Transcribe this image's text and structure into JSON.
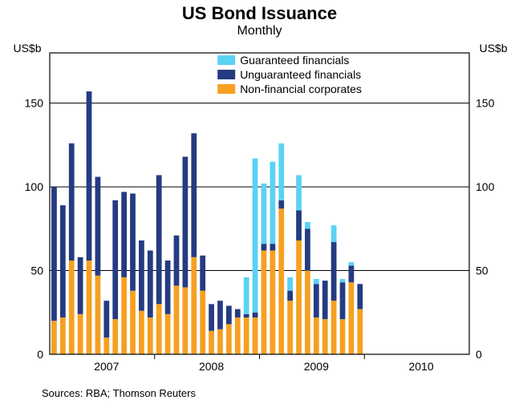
{
  "chart": {
    "type": "stacked-bar",
    "title": "US Bond Issuance",
    "subtitle": "Monthly",
    "title_fontsize": 22,
    "subtitle_fontsize": 16,
    "y_axis_label_left": "US$b",
    "y_axis_label_right": "US$b",
    "axis_label_fontsize": 14,
    "tick_fontsize": 14,
    "ylim": [
      0,
      180
    ],
    "yticks": [
      0,
      50,
      100,
      150
    ],
    "x_year_labels": [
      "2007",
      "2008",
      "2009",
      "2010"
    ],
    "x_year_positions": [
      6,
      18,
      30,
      42
    ],
    "total_slots": 48,
    "background_color": "#ffffff",
    "panel_border_color": "#000000",
    "grid_color": "#000000",
    "bar_width_ratio": 0.62,
    "legend": {
      "position": "top-inside",
      "items": [
        {
          "label": "Guaranteed financials",
          "color": "#5ad2f4"
        },
        {
          "label": "Unguaranteed financials",
          "color": "#253b82"
        },
        {
          "label": "Non-financial corporates",
          "color": "#f6a022"
        }
      ]
    },
    "series_colors": {
      "guaranteed": "#5ad2f4",
      "unguaranteed": "#253b82",
      "nonfinancial": "#f6a022"
    },
    "data": [
      {
        "slot": 0,
        "nonfinancial": 20,
        "unguaranteed": 80,
        "guaranteed": 0
      },
      {
        "slot": 1,
        "nonfinancial": 22,
        "unguaranteed": 67,
        "guaranteed": 0
      },
      {
        "slot": 2,
        "nonfinancial": 56,
        "unguaranteed": 70,
        "guaranteed": 0
      },
      {
        "slot": 3,
        "nonfinancial": 24,
        "unguaranteed": 34,
        "guaranteed": 0
      },
      {
        "slot": 4,
        "nonfinancial": 56,
        "unguaranteed": 101,
        "guaranteed": 0
      },
      {
        "slot": 5,
        "nonfinancial": 47,
        "unguaranteed": 59,
        "guaranteed": 0
      },
      {
        "slot": 6,
        "nonfinancial": 10,
        "unguaranteed": 22,
        "guaranteed": 0
      },
      {
        "slot": 7,
        "nonfinancial": 21,
        "unguaranteed": 71,
        "guaranteed": 0
      },
      {
        "slot": 8,
        "nonfinancial": 46,
        "unguaranteed": 51,
        "guaranteed": 0
      },
      {
        "slot": 9,
        "nonfinancial": 38,
        "unguaranteed": 58,
        "guaranteed": 0
      },
      {
        "slot": 10,
        "nonfinancial": 26,
        "unguaranteed": 42,
        "guaranteed": 0
      },
      {
        "slot": 11,
        "nonfinancial": 22,
        "unguaranteed": 40,
        "guaranteed": 0
      },
      {
        "slot": 12,
        "nonfinancial": 30,
        "unguaranteed": 77,
        "guaranteed": 0
      },
      {
        "slot": 13,
        "nonfinancial": 24,
        "unguaranteed": 32,
        "guaranteed": 0
      },
      {
        "slot": 14,
        "nonfinancial": 41,
        "unguaranteed": 30,
        "guaranteed": 0
      },
      {
        "slot": 15,
        "nonfinancial": 40,
        "unguaranteed": 78,
        "guaranteed": 0
      },
      {
        "slot": 16,
        "nonfinancial": 58,
        "unguaranteed": 74,
        "guaranteed": 0
      },
      {
        "slot": 17,
        "nonfinancial": 38,
        "unguaranteed": 21,
        "guaranteed": 0
      },
      {
        "slot": 18,
        "nonfinancial": 14,
        "unguaranteed": 16,
        "guaranteed": 0
      },
      {
        "slot": 19,
        "nonfinancial": 15,
        "unguaranteed": 17,
        "guaranteed": 0
      },
      {
        "slot": 20,
        "nonfinancial": 18,
        "unguaranteed": 11,
        "guaranteed": 0
      },
      {
        "slot": 21,
        "nonfinancial": 22,
        "unguaranteed": 5,
        "guaranteed": 0
      },
      {
        "slot": 22,
        "nonfinancial": 22,
        "unguaranteed": 2,
        "guaranteed": 22
      },
      {
        "slot": 23,
        "nonfinancial": 22,
        "unguaranteed": 3,
        "guaranteed": 92
      },
      {
        "slot": 24,
        "nonfinancial": 62,
        "unguaranteed": 4,
        "guaranteed": 36
      },
      {
        "slot": 25,
        "nonfinancial": 62,
        "unguaranteed": 4,
        "guaranteed": 49
      },
      {
        "slot": 26,
        "nonfinancial": 87,
        "unguaranteed": 5,
        "guaranteed": 34
      },
      {
        "slot": 27,
        "nonfinancial": 32,
        "unguaranteed": 6,
        "guaranteed": 8
      },
      {
        "slot": 28,
        "nonfinancial": 68,
        "unguaranteed": 18,
        "guaranteed": 21
      },
      {
        "slot": 29,
        "nonfinancial": 50,
        "unguaranteed": 25,
        "guaranteed": 4
      },
      {
        "slot": 30,
        "nonfinancial": 22,
        "unguaranteed": 20,
        "guaranteed": 3
      },
      {
        "slot": 31,
        "nonfinancial": 21,
        "unguaranteed": 23,
        "guaranteed": 0
      },
      {
        "slot": 32,
        "nonfinancial": 32,
        "unguaranteed": 35,
        "guaranteed": 10
      },
      {
        "slot": 33,
        "nonfinancial": 21,
        "unguaranteed": 22,
        "guaranteed": 2
      },
      {
        "slot": 34,
        "nonfinancial": 43,
        "unguaranteed": 10,
        "guaranteed": 2
      },
      {
        "slot": 35,
        "nonfinancial": 27,
        "unguaranteed": 15,
        "guaranteed": 0
      }
    ],
    "sources": "Sources: RBA; Thomson Reuters"
  }
}
